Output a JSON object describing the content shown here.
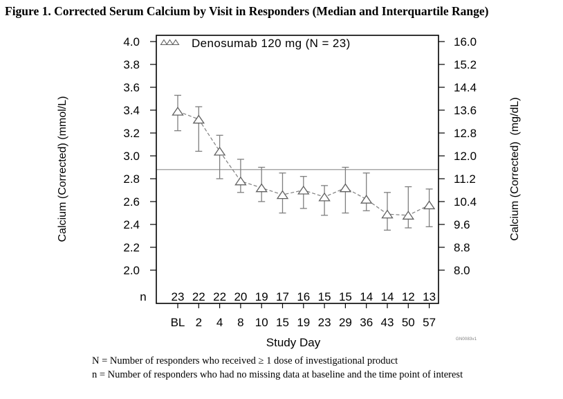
{
  "title": "Figure 1. Corrected Serum Calcium by Visit in Responders (Median and Interquartile Range)",
  "footnotes": [
    "N = Number of responders who received ≥ 1 dose of investigational product",
    "n = Number of responders who had no missing data at baseline and the time point of interest"
  ],
  "watermark": "GN0083v1",
  "chart_data": {
    "type": "line",
    "subtype": "median-with-interquartile-range-errorbars",
    "legend": {
      "label": "Denosumab 120 mg (N = 23)",
      "marker": "open-triangle",
      "position": "top-left-inside"
    },
    "xlabel": "Study Day",
    "x_categories": [
      "BL",
      "2",
      "4",
      "8",
      "10",
      "15",
      "19",
      "23",
      "29",
      "36",
      "43",
      "50",
      "57"
    ],
    "n_label": "n",
    "n_values": [
      "23",
      "22",
      "22",
      "20",
      "19",
      "17",
      "16",
      "15",
      "15",
      "14",
      "14",
      "12",
      "13"
    ],
    "series": [
      {
        "name": "Denosumab 120 mg",
        "median": [
          3.39,
          3.32,
          3.04,
          2.78,
          2.72,
          2.66,
          2.7,
          2.64,
          2.72,
          2.62,
          2.49,
          2.48,
          2.57
        ],
        "q1": [
          3.22,
          3.04,
          2.8,
          2.68,
          2.6,
          2.5,
          2.54,
          2.48,
          2.5,
          2.52,
          2.35,
          2.37,
          2.38
        ],
        "q3": [
          3.53,
          3.43,
          3.18,
          2.97,
          2.9,
          2.85,
          2.82,
          2.74,
          2.9,
          2.85,
          2.68,
          2.73,
          2.71
        ]
      }
    ],
    "reference_line": 2.88,
    "left_axis": {
      "label": "Calcium (Corrected) (mmol/L)",
      "tick_labels": [
        "4.0",
        "3.8",
        "3.6",
        "3.4",
        "3.2",
        "3.0",
        "2.8",
        "2.6",
        "2.4",
        "2.2",
        "2.0"
      ],
      "range": [
        2.0,
        4.0
      ]
    },
    "right_axis": {
      "label": "Calcium (Corrected)  (mg/dL)",
      "tick_labels": [
        "16.0",
        "15.2",
        "14.4",
        "13.6",
        "12.8",
        "12.0",
        "11.2",
        "10.4",
        "9.6",
        "8.8",
        "8.0"
      ],
      "range": [
        8.0,
        16.0
      ]
    },
    "grid": false,
    "colors": {
      "axis": "#000000",
      "data_gray": "#7e7e7e",
      "marker_stroke": "#606060",
      "marker_fill": "#ffffff",
      "ref_line": "#8c8c8c",
      "text": "#000000"
    }
  }
}
